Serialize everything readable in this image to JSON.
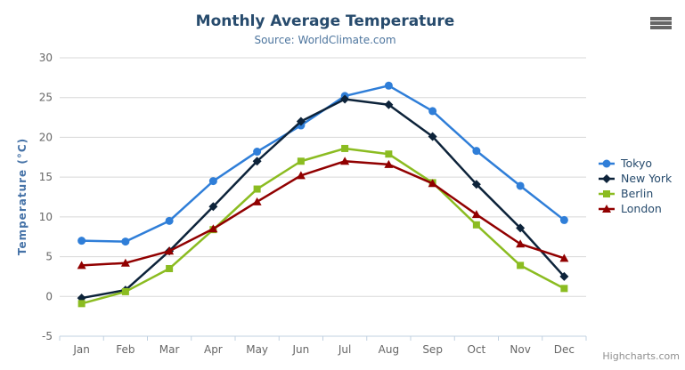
{
  "header": {
    "title": "Monthly Average Temperature",
    "subtitle": "Source: WorldClimate.com"
  },
  "credits": "Highcharts.com",
  "colors": {
    "title": "#274b6d",
    "subtitle": "#4d759e",
    "axis_label": "#666666",
    "axis_title": "#4572a7",
    "grid": "#d8d8d8",
    "axis_line": "#c0d0e0",
    "legend_text": "#274b6d",
    "credits_text": "#909090",
    "menu_icon": "#666666"
  },
  "chart_data": {
    "type": "line",
    "title": "Monthly Average Temperature",
    "subtitle": "Source: WorldClimate.com",
    "categories": [
      "Jan",
      "Feb",
      "Mar",
      "Apr",
      "May",
      "Jun",
      "Jul",
      "Aug",
      "Sep",
      "Oct",
      "Nov",
      "Dec"
    ],
    "xlabel": "",
    "ylabel": "Temperature (°C)",
    "ylim": [
      -5,
      30
    ],
    "ytick_interval": 5,
    "grid": true,
    "legend_position": "right",
    "series": [
      {
        "name": "Tokyo",
        "color": "#2f7ed8",
        "marker": "circle",
        "values": [
          7.0,
          6.9,
          9.5,
          14.5,
          18.2,
          21.5,
          25.2,
          26.5,
          23.3,
          18.3,
          13.9,
          9.6
        ]
      },
      {
        "name": "New York",
        "color": "#0d233a",
        "marker": "diamond",
        "values": [
          -0.2,
          0.8,
          5.7,
          11.3,
          17.0,
          22.0,
          24.8,
          24.1,
          20.1,
          14.1,
          8.6,
          2.5
        ]
      },
      {
        "name": "Berlin",
        "color": "#8bbc21",
        "marker": "square",
        "values": [
          -0.9,
          0.6,
          3.5,
          8.4,
          13.5,
          17.0,
          18.6,
          17.9,
          14.3,
          9.0,
          3.9,
          1.0
        ]
      },
      {
        "name": "London",
        "color": "#910000",
        "marker": "triangle",
        "values": [
          3.9,
          4.2,
          5.7,
          8.5,
          11.9,
          15.2,
          17.0,
          16.6,
          14.2,
          10.3,
          6.6,
          4.8
        ]
      }
    ]
  }
}
